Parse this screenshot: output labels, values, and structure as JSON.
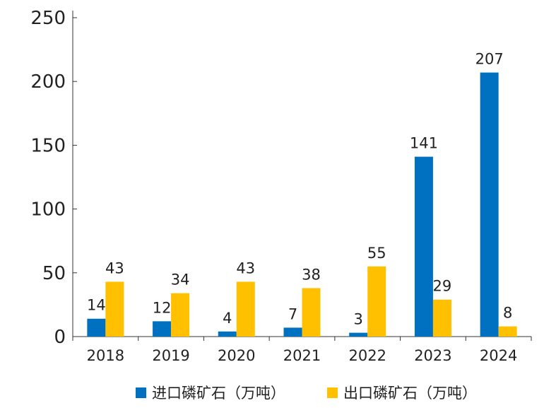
{
  "chart_data": {
    "type": "bar",
    "categories": [
      "2018",
      "2019",
      "2020",
      "2021",
      "2022",
      "2023",
      "2024"
    ],
    "series": [
      {
        "name": "进口磷矿石（万吨）",
        "values": [
          14,
          12,
          4,
          7,
          3,
          141,
          207
        ],
        "color": "#0070c0"
      },
      {
        "name": "出口磷矿石（万吨）",
        "values": [
          43,
          34,
          43,
          38,
          55,
          29,
          8
        ],
        "color": "#ffc000"
      }
    ],
    "ylim": [
      0,
      250
    ],
    "yticks": [
      0,
      50,
      100,
      150,
      200,
      250
    ],
    "data_labels": true,
    "legend_position": "bottom",
    "grid": false
  }
}
